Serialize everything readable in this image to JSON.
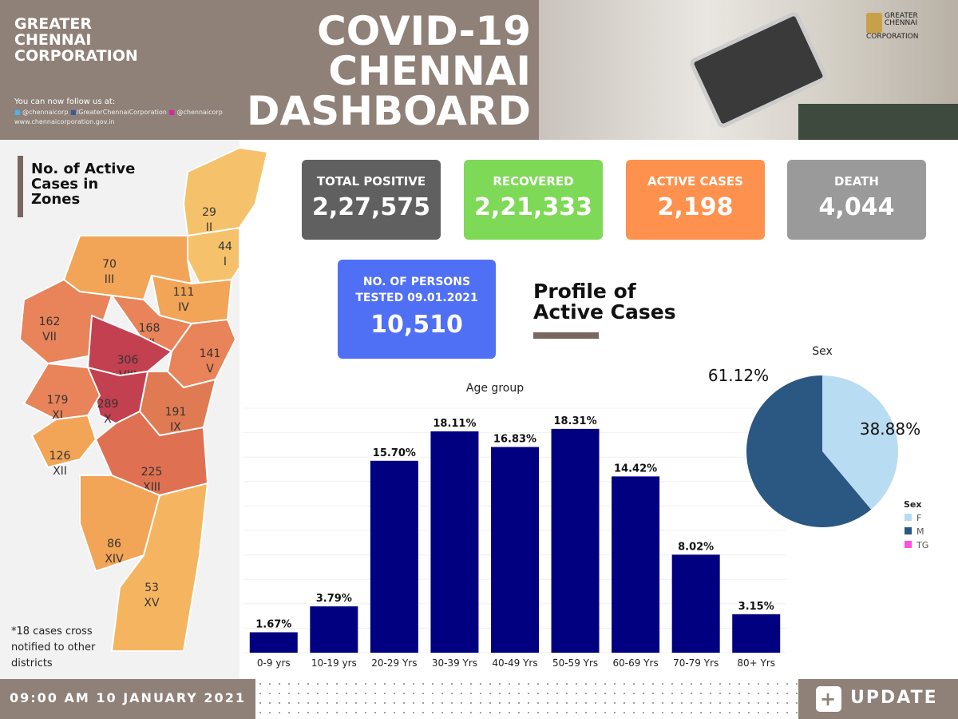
{
  "header": {
    "org_name": [
      "GREATER",
      "CHENNAI",
      "CORPORATION"
    ],
    "title": [
      "COVID-19",
      "CHENNAI",
      "DASHBOARD"
    ],
    "follow_text": "You can now follow us at:",
    "twitter": "@chennaicorp",
    "facebook": "/GreaterChennaiCorporation",
    "instagram": "@chennaicorp",
    "website": "www.chennaicorporation.gov.in",
    "logo_text": [
      "GREATER",
      "CHENNAI",
      "CORPORATION"
    ]
  },
  "map": {
    "title": [
      "No. of Active",
      "Cases in",
      "Zones"
    ],
    "note": [
      "*18 cases cross",
      "notified to other",
      "districts"
    ],
    "zones": [
      {
        "name": "I",
        "value": "44"
      },
      {
        "name": "II",
        "value": "29"
      },
      {
        "name": "III",
        "value": "70"
      },
      {
        "name": "IV",
        "value": "111"
      },
      {
        "name": "V",
        "value": "141"
      },
      {
        "name": "VI",
        "value": "168"
      },
      {
        "name": "VII",
        "value": "162"
      },
      {
        "name": "VIII",
        "value": "306"
      },
      {
        "name": "IX",
        "value": "191"
      },
      {
        "name": "X",
        "value": "289"
      },
      {
        "name": "XI",
        "value": "179"
      },
      {
        "name": "XII",
        "value": "126"
      },
      {
        "name": "XIII",
        "value": "225"
      },
      {
        "name": "XIV",
        "value": "86"
      },
      {
        "name": "XV",
        "value": "53"
      }
    ]
  },
  "stats": {
    "total_positive": {
      "label": "TOTAL POSITIVE",
      "value": "2,27,575",
      "color": "#606060"
    },
    "recovered": {
      "label": "RECOVERED",
      "value": "2,21,333",
      "color": "#7ed957"
    },
    "active": {
      "label": "ACTIVE CASES",
      "value": "2,198",
      "color": "#fe914d"
    },
    "death": {
      "label": "DEATH",
      "value": "4,044",
      "color": "#9a9a9a"
    },
    "tested": {
      "label": [
        "NO. OF PERSONS",
        "TESTED 09.01.2021"
      ],
      "value": "10,510",
      "color": "#4f6ff5"
    }
  },
  "profile": {
    "title": [
      "Profile of",
      "Active Cases"
    ]
  },
  "chart_data": [
    {
      "type": "bar",
      "title": "Age group",
      "categories": [
        "0-9 yrs",
        "10-19 yrs",
        "20-29 Yrs",
        "30-39 Yrs",
        "40-49 Yrs",
        "50-59 Yrs",
        "60-69 Yrs",
        "70-79 Yrs",
        "80+ Yrs"
      ],
      "values": [
        1.67,
        3.79,
        15.7,
        18.11,
        16.83,
        18.31,
        14.42,
        8.02,
        3.15
      ],
      "labels": [
        "1.67%",
        "3.79%",
        "15.70%",
        "18.11%",
        "16.83%",
        "18.31%",
        "14.42%",
        "8.02%",
        "3.15%"
      ],
      "ylim": [
        0,
        20
      ],
      "color": "#000080",
      "grid": true
    },
    {
      "type": "pie",
      "title": "Sex",
      "legend_title": "Sex",
      "legend_placement": "right",
      "slices": [
        {
          "name": "F",
          "value": 38.88,
          "label": "38.88%",
          "color": "#b8dcf2"
        },
        {
          "name": "M",
          "value": 61.12,
          "label": "61.12%",
          "color": "#2b5783"
        },
        {
          "name": "TG",
          "value": 0,
          "color": "#ff4fe0"
        }
      ]
    }
  ],
  "footer": {
    "timestamp": "09:00 AM 10 JANUARY 2021",
    "update": "UPDATE"
  }
}
